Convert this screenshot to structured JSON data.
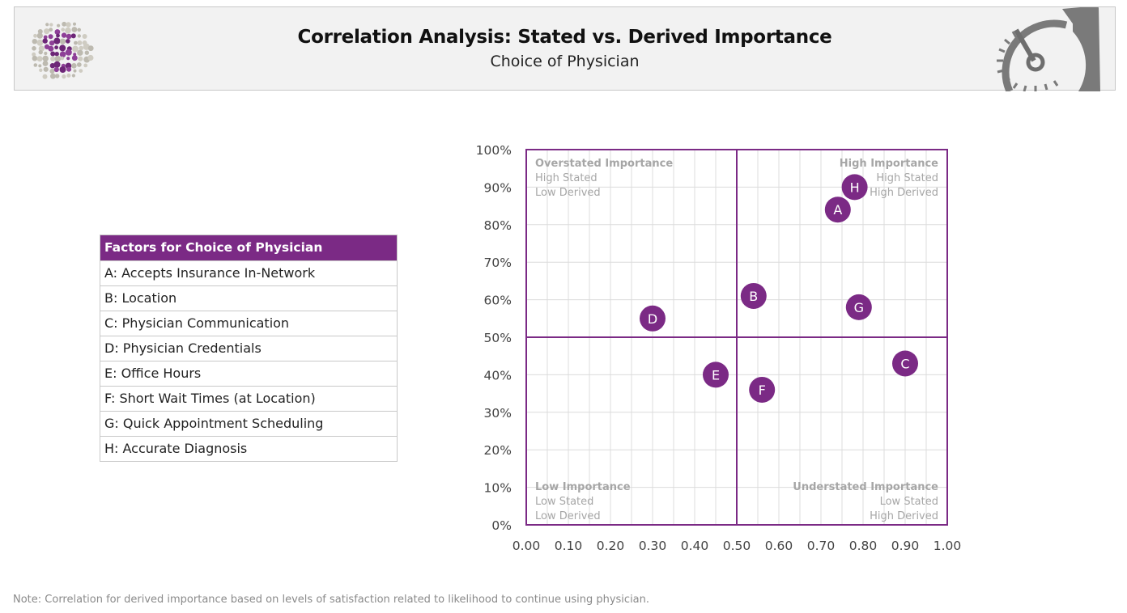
{
  "header": {
    "title": "Correlation Analysis: Stated vs. Derived Importance",
    "subtitle": "Choice of Physician"
  },
  "legend": {
    "title": "Factors for Choice of Physician",
    "items": [
      "A: Accepts Insurance In-Network",
      "B: Location",
      "C: Physician Communication",
      "D: Physician Credentials",
      "E: Office Hours",
      "F: Short Wait Times (at Location)",
      "G: Quick Appointment Scheduling",
      "H: Accurate Diagnosis"
    ]
  },
  "note": "Note: Correlation for derived importance based on levels of satisfaction related to likelihood to continue using physician.",
  "colors": {
    "accent": "#7b2a85",
    "grid": "#dcdcdc",
    "quadrant_text": "#a6a6a6"
  },
  "chart_data": {
    "type": "scatter",
    "title": "Correlation Analysis: Stated vs. Derived Importance",
    "xlabel": "",
    "ylabel": "",
    "xlim": [
      0,
      1
    ],
    "ylim": [
      0,
      100
    ],
    "x_ticks": [
      "0.00",
      "0.10",
      "0.20",
      "0.30",
      "0.40",
      "0.50",
      "0.60",
      "0.70",
      "0.80",
      "0.90",
      "1.00"
    ],
    "y_ticks": [
      "0%",
      "10%",
      "20%",
      "30%",
      "40%",
      "50%",
      "60%",
      "70%",
      "80%",
      "90%",
      "100%"
    ],
    "grid": true,
    "dividers": {
      "x": 0.5,
      "y": 50
    },
    "quadrants": [
      {
        "position": "top-left",
        "title": "Overstated Importance",
        "line1": "High Stated",
        "line2": "Low Derived"
      },
      {
        "position": "top-right",
        "title": "High Importance",
        "line1": "High Stated",
        "line2": "High Derived"
      },
      {
        "position": "bottom-left",
        "title": "Low Importance",
        "line1": "Low Stated",
        "line2": "Low Derived"
      },
      {
        "position": "bottom-right",
        "title": "Understated Importance",
        "line1": "Low Stated",
        "line2": "High Derived"
      }
    ],
    "points": [
      {
        "label": "A",
        "x": 0.74,
        "y": 84
      },
      {
        "label": "B",
        "x": 0.54,
        "y": 61
      },
      {
        "label": "C",
        "x": 0.9,
        "y": 43
      },
      {
        "label": "D",
        "x": 0.3,
        "y": 55
      },
      {
        "label": "E",
        "x": 0.45,
        "y": 40
      },
      {
        "label": "F",
        "x": 0.56,
        "y": 36
      },
      {
        "label": "G",
        "x": 0.79,
        "y": 58
      },
      {
        "label": "H",
        "x": 0.78,
        "y": 90
      }
    ]
  }
}
